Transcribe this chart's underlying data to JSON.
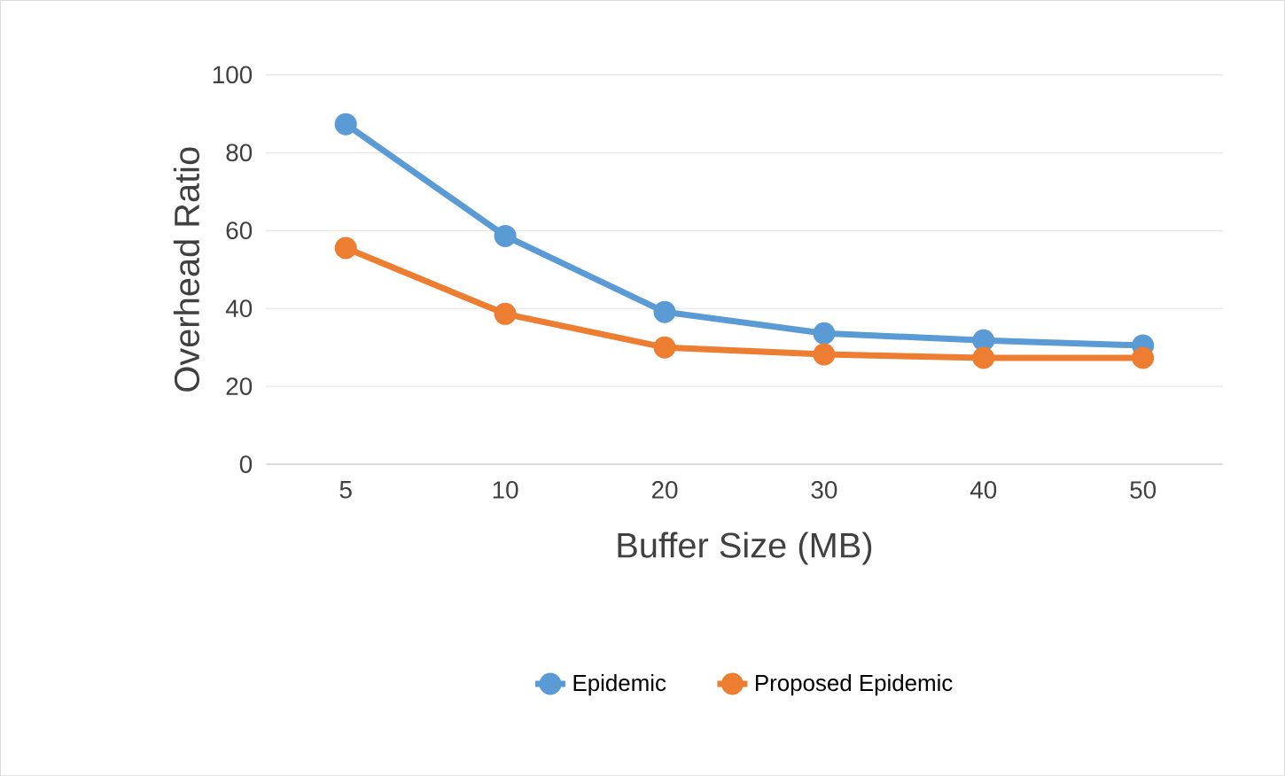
{
  "chart_data": {
    "type": "line",
    "xlabel": "Buffer Size (MB)",
    "ylabel": "Overhead Ratio",
    "categories": [
      "5",
      "10",
      "20",
      "30",
      "40",
      "50"
    ],
    "series": [
      {
        "name": "Epidemic",
        "color": "#5b9bd5",
        "values": [
          87.3,
          58.6,
          39.1,
          33.6,
          31.8,
          30.5
        ]
      },
      {
        "name": "Proposed Epidemic",
        "color": "#ed7d31",
        "values": [
          55.5,
          38.6,
          30,
          28.2,
          27.3,
          27.3
        ]
      }
    ],
    "ylim": [
      0,
      100
    ],
    "yticks": [
      0,
      20,
      40,
      60,
      80,
      100
    ],
    "grid": "y",
    "legend": "bottom",
    "marker": "circle",
    "line_style": "solid"
  }
}
